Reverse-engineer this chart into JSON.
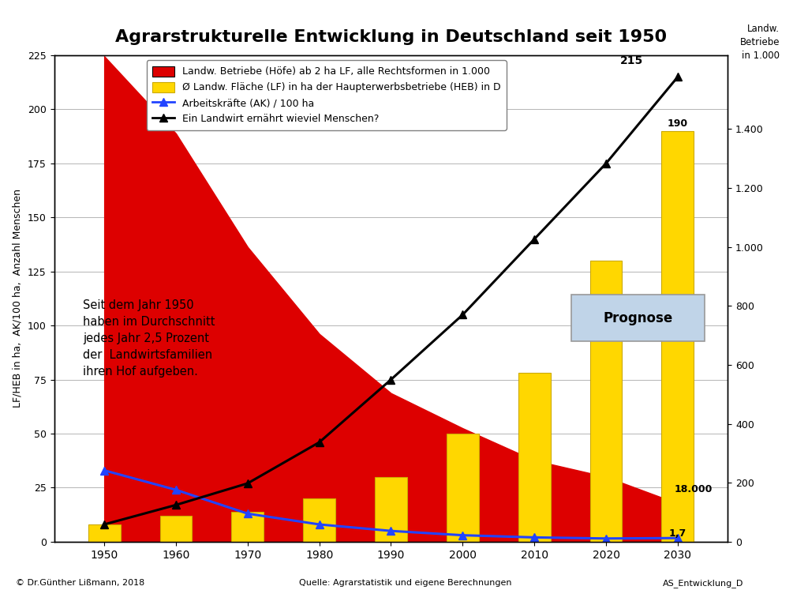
{
  "title": "Agrarstrukturelle Entwicklung in Deutschland seit 1950",
  "years": [
    1950,
    1960,
    1970,
    1980,
    1990,
    2000,
    2010,
    2020,
    2030
  ],
  "hof_values_right": [
    1647,
    1385,
    1000,
    705,
    504,
    385,
    276,
    220,
    130
  ],
  "lf_heb_values": [
    8,
    12,
    14,
    20,
    30,
    50,
    78,
    130,
    190
  ],
  "ak_values": [
    33,
    24,
    13,
    8,
    5,
    3,
    2,
    1.5,
    1.7
  ],
  "people_fed": [
    8,
    17,
    27,
    46,
    75,
    105,
    140,
    175,
    215
  ],
  "bar_color": "#FFD700",
  "fill_color": "#DD0000",
  "line_ak_color": "#2244FF",
  "line_people_color": "#000000",
  "ylabel_left": "LF/HEB in ha,  AK/100 ha,  Anzahl Menschen",
  "ylim_left": [
    0,
    225
  ],
  "ylim_right": [
    0,
    1650
  ],
  "yticks_left": [
    0,
    25,
    50,
    75,
    100,
    125,
    150,
    175,
    200,
    225
  ],
  "yticks_right": [
    0,
    200,
    400,
    600,
    800,
    1000,
    1200,
    1400
  ],
  "ytick_right_labels": [
    "0",
    "200",
    "400",
    "600",
    "800",
    "1.000",
    "1.200",
    "1.400"
  ],
  "legend_labels": [
    "Landw. Betriebe (Höfe) ab 2 ha LF, alle Rechtsformen in 1.000",
    "Ø Landw. Fläche (LF) in ha der Haupterwerbsbetriebe (HEB) in D",
    "Arbeitskräfte (AK) / 100 ha",
    "Ein Landwirt ernährt wieviel Menschen?"
  ],
  "annotation_text": "Seit dem Jahr 1950\nhaben im Durchschnitt\njedes Jahr 2,5 Prozent\nder  Landwirtsfamilien\nihren Hof aufgeben.",
  "bg_color": "#FFFFFF",
  "footer_left": "© Dr.Günther Lißmann, 2018",
  "footer_center": "Quelle: Agrarstatistik und eigene Berechnungen",
  "footer_right": "AS_Entwicklung_D"
}
